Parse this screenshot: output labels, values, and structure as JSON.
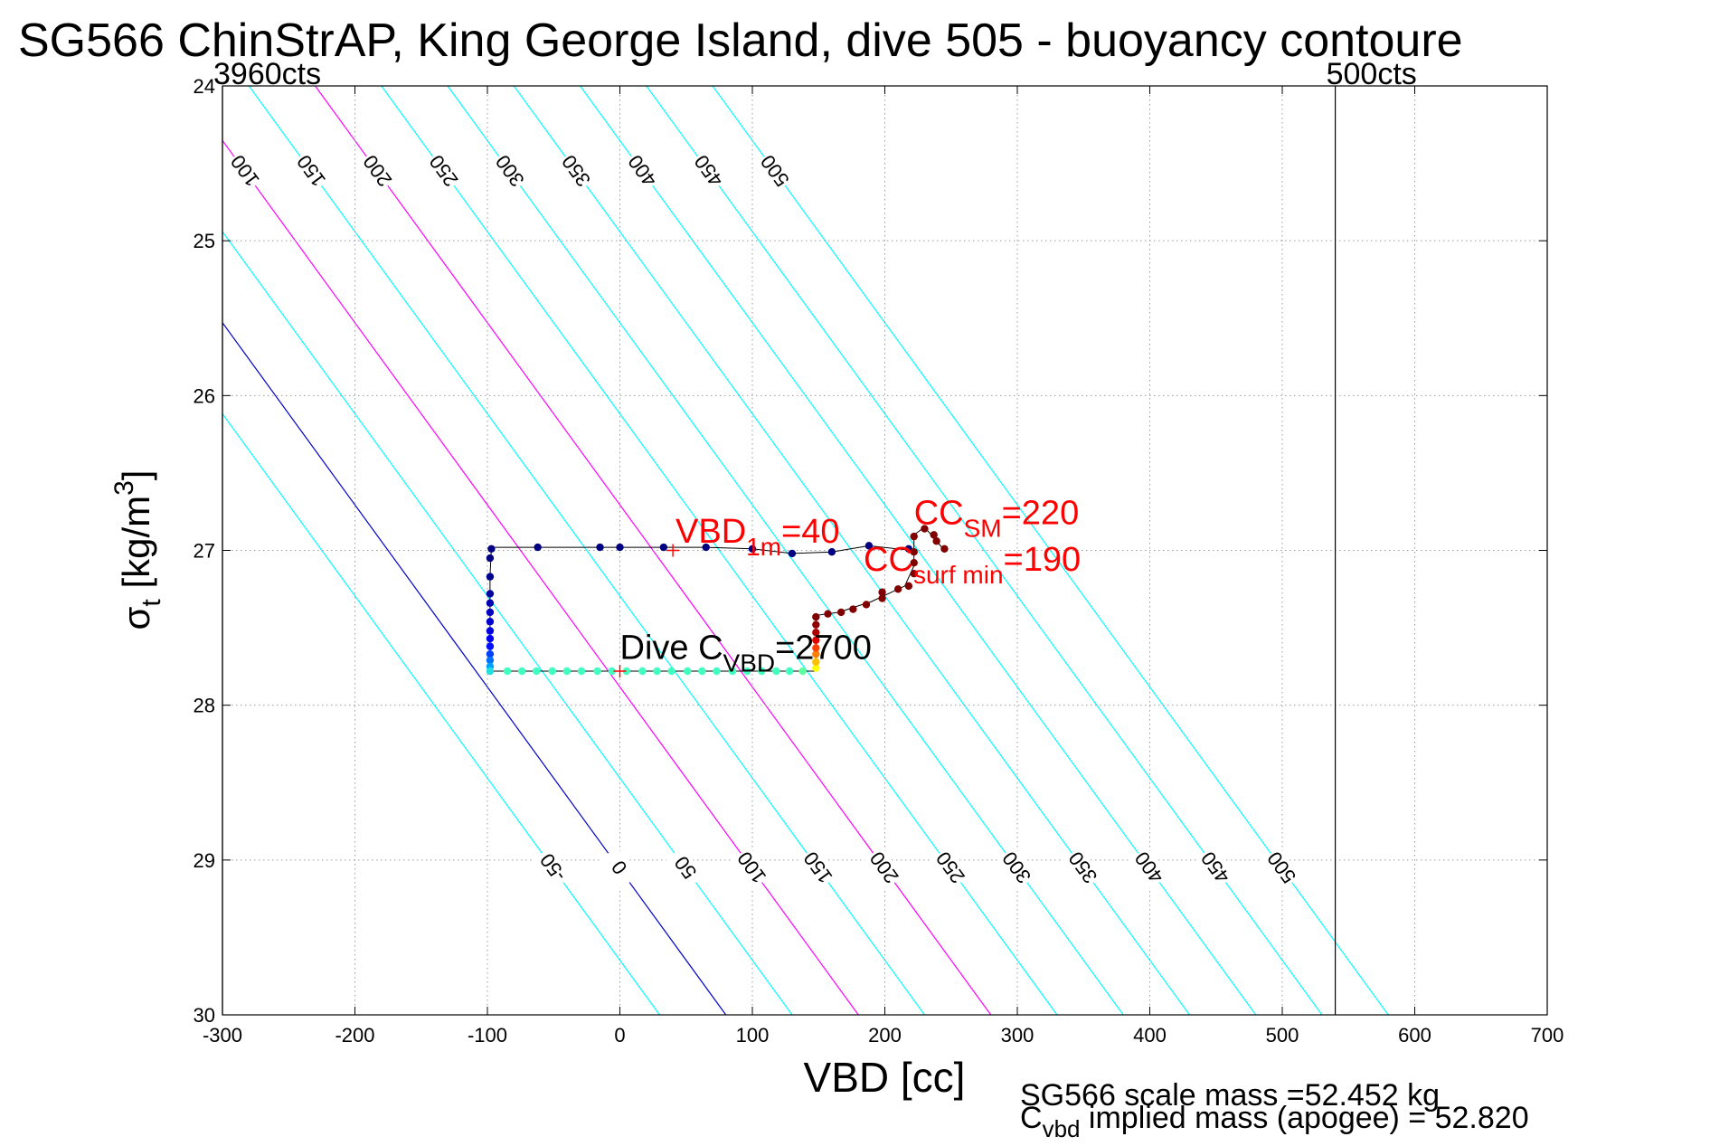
{
  "chart_data": {
    "type": "scatter",
    "title": "SG566 ChinStrAP, King George Island, dive 505 - buoyancy contoure",
    "xlabel": "VBD [cc]",
    "ylabel": {
      "symbol": "σ",
      "sub": "t",
      "unit_prefix": " [kg/m",
      "unit_sup": "3",
      "unit_suffix": "]"
    },
    "xlim": [
      -300,
      700
    ],
    "ylim": [
      24,
      30
    ],
    "y_inverted": true,
    "grid": "dotted",
    "x_ticks": [
      "-300",
      "-200",
      "-100",
      "0",
      "100",
      "200",
      "300",
      "400",
      "500",
      "600",
      "700"
    ],
    "y_ticks": [
      "24",
      "25",
      "26",
      "27",
      "28",
      "29",
      "30"
    ],
    "limits": [
      {
        "label": "3960cts",
        "vbd": -300
      },
      {
        "label": "500cts",
        "vbd": 540
      }
    ],
    "contours": [
      {
        "level": -50,
        "label": "-50",
        "color": "#00ffff"
      },
      {
        "level": 0,
        "label": "0",
        "color": "#0000cc"
      },
      {
        "level": 50,
        "label": "50",
        "color": "#00ffff"
      },
      {
        "level": 100,
        "label": "100",
        "color": "#ff00ff"
      },
      {
        "level": 150,
        "label": "150",
        "color": "#00ffff"
      },
      {
        "level": 200,
        "label": "200",
        "color": "#ff00ff"
      },
      {
        "level": 250,
        "label": "250",
        "color": "#00ffff"
      },
      {
        "level": 300,
        "label": "300",
        "color": "#00ffff"
      },
      {
        "level": 350,
        "label": "350",
        "color": "#00ffff"
      },
      {
        "level": 400,
        "label": "400",
        "color": "#00ffff"
      },
      {
        "level": 450,
        "label": "450",
        "color": "#00ffff"
      },
      {
        "level": 500,
        "label": "500",
        "color": "#00ffff"
      }
    ],
    "contour_slope_cc_per_sigma": 85,
    "contour_offset_cc_at_sigma27": -175,
    "trajectory": [
      {
        "x": 220,
        "y": 27.0
      },
      {
        "x": 188,
        "y": 26.97
      },
      {
        "x": 160,
        "y": 27.01
      },
      {
        "x": 130,
        "y": 27.02
      },
      {
        "x": 100,
        "y": 26.99
      },
      {
        "x": 65,
        "y": 26.98
      },
      {
        "x": 33,
        "y": 26.98
      },
      {
        "x": 0,
        "y": 26.98
      },
      {
        "x": -15,
        "y": 26.98
      },
      {
        "x": -62,
        "y": 26.98
      },
      {
        "x": -97,
        "y": 26.98
      },
      {
        "x": -98,
        "y": 27.17
      },
      {
        "x": -98,
        "y": 27.78
      },
      {
        "x": -50,
        "y": 27.78
      },
      {
        "x": 0,
        "y": 27.78
      },
      {
        "x": 50,
        "y": 27.78
      },
      {
        "x": 100,
        "y": 27.78
      },
      {
        "x": 148,
        "y": 27.78
      },
      {
        "x": 148,
        "y": 27.7
      },
      {
        "x": 148,
        "y": 27.42
      },
      {
        "x": 165,
        "y": 27.4
      },
      {
        "x": 190,
        "y": 27.33
      },
      {
        "x": 215,
        "y": 27.23
      },
      {
        "x": 222,
        "y": 27.1
      },
      {
        "x": 222,
        "y": 26.9
      },
      {
        "x": 230,
        "y": 26.85
      },
      {
        "x": 245,
        "y": 27.0
      }
    ],
    "points": [
      {
        "x": -97,
        "y": 26.99,
        "c": "#000080"
      },
      {
        "x": -98,
        "y": 27.05,
        "c": "#000080"
      },
      {
        "x": -98,
        "y": 27.17,
        "c": "#00008f"
      },
      {
        "x": -62,
        "y": 26.98,
        "c": "#000080"
      },
      {
        "x": -15,
        "y": 26.98,
        "c": "#000080"
      },
      {
        "x": 0,
        "y": 26.98,
        "c": "#000080"
      },
      {
        "x": 33,
        "y": 26.98,
        "c": "#000080"
      },
      {
        "x": 65,
        "y": 26.98,
        "c": "#000080"
      },
      {
        "x": 100,
        "y": 26.99,
        "c": "#000080"
      },
      {
        "x": 130,
        "y": 27.02,
        "c": "#000080"
      },
      {
        "x": 160,
        "y": 27.01,
        "c": "#000080"
      },
      {
        "x": 188,
        "y": 26.97,
        "c": "#000080"
      },
      {
        "x": 218,
        "y": 26.99,
        "c": "#000080"
      },
      {
        "x": -98,
        "y": 27.28,
        "c": "#0000a0"
      },
      {
        "x": -98,
        "y": 27.34,
        "c": "#0000b0"
      },
      {
        "x": -98,
        "y": 27.4,
        "c": "#0000c0"
      },
      {
        "x": -98,
        "y": 27.46,
        "c": "#0000d0"
      },
      {
        "x": -98,
        "y": 27.52,
        "c": "#0000e0"
      },
      {
        "x": -98,
        "y": 27.57,
        "c": "#0000f0"
      },
      {
        "x": -98,
        "y": 27.62,
        "c": "#0010ff"
      },
      {
        "x": -98,
        "y": 27.67,
        "c": "#0040ff"
      },
      {
        "x": -98,
        "y": 27.71,
        "c": "#0070ff"
      },
      {
        "x": -98,
        "y": 27.75,
        "c": "#00a0ff"
      },
      {
        "x": -98,
        "y": 27.78,
        "c": "#20e0e0"
      },
      {
        "x": -85,
        "y": 27.78,
        "c": "#40ffc0"
      },
      {
        "x": -74,
        "y": 27.78,
        "c": "#40ffc0"
      },
      {
        "x": -63,
        "y": 27.78,
        "c": "#40ffc0"
      },
      {
        "x": -51,
        "y": 27.78,
        "c": "#40ffc0"
      },
      {
        "x": -40,
        "y": 27.78,
        "c": "#40ffc0"
      },
      {
        "x": -29,
        "y": 27.78,
        "c": "#40ffc0"
      },
      {
        "x": -17,
        "y": 27.78,
        "c": "#40ffc0"
      },
      {
        "x": -6,
        "y": 27.78,
        "c": "#40ffc0"
      },
      {
        "x": 5,
        "y": 27.78,
        "c": "#40ffc0"
      },
      {
        "x": 17,
        "y": 27.78,
        "c": "#40ffc0"
      },
      {
        "x": 28,
        "y": 27.78,
        "c": "#40ffc0"
      },
      {
        "x": 39,
        "y": 27.78,
        "c": "#40ffc0"
      },
      {
        "x": 51,
        "y": 27.78,
        "c": "#40ffc0"
      },
      {
        "x": 62,
        "y": 27.78,
        "c": "#40ffc0"
      },
      {
        "x": 73,
        "y": 27.78,
        "c": "#40ffc0"
      },
      {
        "x": 85,
        "y": 27.78,
        "c": "#40ffc0"
      },
      {
        "x": 96,
        "y": 27.78,
        "c": "#40ffc0"
      },
      {
        "x": 107,
        "y": 27.78,
        "c": "#40ffc0"
      },
      {
        "x": 118,
        "y": 27.78,
        "c": "#40ffc0"
      },
      {
        "x": 128,
        "y": 27.78,
        "c": "#40ffc0"
      },
      {
        "x": 138,
        "y": 27.78,
        "c": "#60ffa0"
      },
      {
        "x": 148,
        "y": 27.76,
        "c": "#ffff00"
      },
      {
        "x": 148,
        "y": 27.72,
        "c": "#ffc000"
      },
      {
        "x": 148,
        "y": 27.67,
        "c": "#ff8000"
      },
      {
        "x": 148,
        "y": 27.63,
        "c": "#ff4000"
      },
      {
        "x": 148,
        "y": 27.58,
        "c": "#e00000"
      },
      {
        "x": 148,
        "y": 27.53,
        "c": "#b00000"
      },
      {
        "x": 148,
        "y": 27.48,
        "c": "#900000"
      },
      {
        "x": 148,
        "y": 27.43,
        "c": "#800000"
      },
      {
        "x": 157,
        "y": 27.41,
        "c": "#800000"
      },
      {
        "x": 167,
        "y": 27.4,
        "c": "#800000"
      },
      {
        "x": 176,
        "y": 27.38,
        "c": "#800000"
      },
      {
        "x": 186,
        "y": 27.35,
        "c": "#800000"
      },
      {
        "x": 198,
        "y": 27.31,
        "c": "#800000"
      },
      {
        "x": 198,
        "y": 27.27,
        "c": "#800000"
      },
      {
        "x": 210,
        "y": 27.25,
        "c": "#800000"
      },
      {
        "x": 218,
        "y": 27.23,
        "c": "#800000"
      },
      {
        "x": 222,
        "y": 27.15,
        "c": "#800000"
      },
      {
        "x": 222,
        "y": 27.08,
        "c": "#800000"
      },
      {
        "x": 222,
        "y": 27.01,
        "c": "#800000"
      },
      {
        "x": 222,
        "y": 26.91,
        "c": "#800000"
      },
      {
        "x": 230,
        "y": 26.86,
        "c": "#800000"
      },
      {
        "x": 237,
        "y": 26.9,
        "c": "#800000"
      },
      {
        "x": 239,
        "y": 26.94,
        "c": "#800000"
      },
      {
        "x": 245,
        "y": 26.99,
        "c": "#800000"
      }
    ],
    "plus_markers": [
      {
        "x": 40,
        "y": 27.0
      },
      {
        "x": 0,
        "y": 27.78
      }
    ],
    "annotations": {
      "vbd1m": {
        "main": "VBD",
        "sub": "1m",
        "tail": "=40",
        "x": 42,
        "y": 26.95,
        "color": "#ff0000"
      },
      "ccsm": {
        "main": "CC",
        "sub": "SM",
        "tail": "=220",
        "x": 222,
        "y": 26.83,
        "color": "#ff0000"
      },
      "ccsurf": {
        "main": "CC",
        "sub": "surf min",
        "tail": "=190",
        "x": 184,
        "y": 27.13,
        "color": "#ff0000"
      },
      "dive_c": {
        "main": "Dive C",
        "sub": "VBD",
        "tail": "=2700",
        "x": 0,
        "y": 27.7,
        "color": "#000000"
      }
    },
    "footer": {
      "line1": "SG566 scale mass =52.452 kg",
      "line2_main": "C",
      "line2_sub": "vbd",
      "line2_tail": " implied mass (apogee) = 52.820"
    }
  }
}
